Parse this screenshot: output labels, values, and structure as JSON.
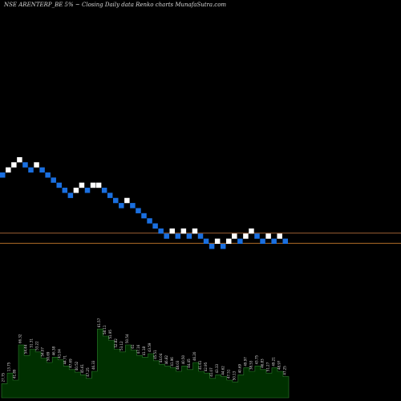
{
  "title": "NSE ARENTERP_BE 5% ~  Closing Daily data  Renko  charts MunafaSutra.com",
  "colors": {
    "background": "#000000",
    "up_brick": "#ffffff",
    "down_brick": "#1a6fe0",
    "volume_fill": "#003000",
    "volume_stroke": "#2e7d2e",
    "ref_line_upper": "#b06a3a",
    "ref_line_lower": "#c87a2a"
  },
  "chart_data": [
    {
      "type": "renko",
      "bricks": [
        {
          "dir": "down",
          "level": 0
        },
        {
          "dir": "up",
          "level": 1
        },
        {
          "dir": "up",
          "level": 2
        },
        {
          "dir": "up",
          "level": 3
        },
        {
          "dir": "down",
          "level": 2
        },
        {
          "dir": "down",
          "level": 1
        },
        {
          "dir": "up",
          "level": 2
        },
        {
          "dir": "down",
          "level": 1
        },
        {
          "dir": "down",
          "level": 0
        },
        {
          "dir": "down",
          "level": -1
        },
        {
          "dir": "down",
          "level": -2
        },
        {
          "dir": "down",
          "level": -3
        },
        {
          "dir": "down",
          "level": -4
        },
        {
          "dir": "up",
          "level": -3
        },
        {
          "dir": "up",
          "level": -2
        },
        {
          "dir": "down",
          "level": -3
        },
        {
          "dir": "up",
          "level": -2
        },
        {
          "dir": "up",
          "level": -2
        },
        {
          "dir": "down",
          "level": -3
        },
        {
          "dir": "down",
          "level": -4
        },
        {
          "dir": "down",
          "level": -5
        },
        {
          "dir": "down",
          "level": -6
        },
        {
          "dir": "up",
          "level": -5
        },
        {
          "dir": "down",
          "level": -6
        },
        {
          "dir": "down",
          "level": -7
        },
        {
          "dir": "down",
          "level": -8
        },
        {
          "dir": "down",
          "level": -9
        },
        {
          "dir": "down",
          "level": -10
        },
        {
          "dir": "down",
          "level": -11
        },
        {
          "dir": "down",
          "level": -12
        },
        {
          "dir": "up",
          "level": -11
        },
        {
          "dir": "down",
          "level": -12
        },
        {
          "dir": "up",
          "level": -11
        },
        {
          "dir": "down",
          "level": -12
        },
        {
          "dir": "up",
          "level": -11
        },
        {
          "dir": "down",
          "level": -12
        },
        {
          "dir": "down",
          "level": -13
        },
        {
          "dir": "down",
          "level": -14
        },
        {
          "dir": "up",
          "level": -13
        },
        {
          "dir": "down",
          "level": -14
        },
        {
          "dir": "up",
          "level": -13
        },
        {
          "dir": "up",
          "level": -12
        },
        {
          "dir": "down",
          "level": -13
        },
        {
          "dir": "up",
          "level": -12
        },
        {
          "dir": "up",
          "level": -11
        },
        {
          "dir": "down",
          "level": -12
        },
        {
          "dir": "down",
          "level": -13
        },
        {
          "dir": "up",
          "level": -12
        },
        {
          "dir": "down",
          "level": -13
        },
        {
          "dir": "up",
          "level": -12
        },
        {
          "dir": "down",
          "level": -13
        }
      ],
      "reference_levels": [
        -11.4,
        -13.4
      ]
    },
    {
      "type": "area",
      "name": "volume",
      "x": [
        1,
        2,
        3,
        4,
        5,
        6,
        7,
        8,
        9,
        10,
        11,
        12,
        13,
        14,
        15,
        16,
        17,
        18,
        19,
        20,
        21,
        22,
        23,
        24,
        25,
        26,
        27,
        28,
        29,
        30,
        31,
        32,
        33,
        34,
        35,
        36,
        37,
        38,
        39,
        40,
        41,
        42,
        43,
        44,
        45,
        46,
        47,
        48,
        49,
        50,
        51
      ],
      "values": [
        16,
        28,
        20,
        60,
        48,
        55,
        52,
        45,
        40,
        46,
        43,
        36,
        32,
        29,
        26,
        22,
        30,
        78,
        70,
        65,
        55,
        52,
        60,
        54,
        48,
        46,
        50,
        42,
        38,
        36,
        34,
        30,
        36,
        32,
        40,
        30,
        28,
        22,
        26,
        24,
        20,
        18,
        26,
        34,
        30,
        36,
        32,
        28,
        34,
        30,
        24
      ],
      "data_labels": [
        "27.75",
        "13.75",
        "41.89",
        "66.32",
        "54.44",
        "51.31",
        "53.22",
        "54.07",
        "50.69",
        "46.38",
        "41.04",
        "44.71",
        "47.69",
        "40.52",
        "45.61",
        "47.25",
        "46.33",
        "61.57",
        "58.11",
        "51.95",
        "52.82",
        "53.12",
        "50.54",
        "61",
        "47.16",
        "41.18",
        "43.59",
        "45.51",
        "44.04",
        "46.82",
        "41.96",
        "48.03",
        "40.50",
        "44.45",
        "46.20",
        "41.61",
        "42.95",
        "41.07",
        "43.33",
        "44.62",
        "47.51",
        "50.13",
        "40.69",
        "49.97",
        "38.53",
        "43.75",
        "46.83",
        "51.27",
        "49.21",
        "48.97",
        "47.25"
      ]
    }
  ]
}
